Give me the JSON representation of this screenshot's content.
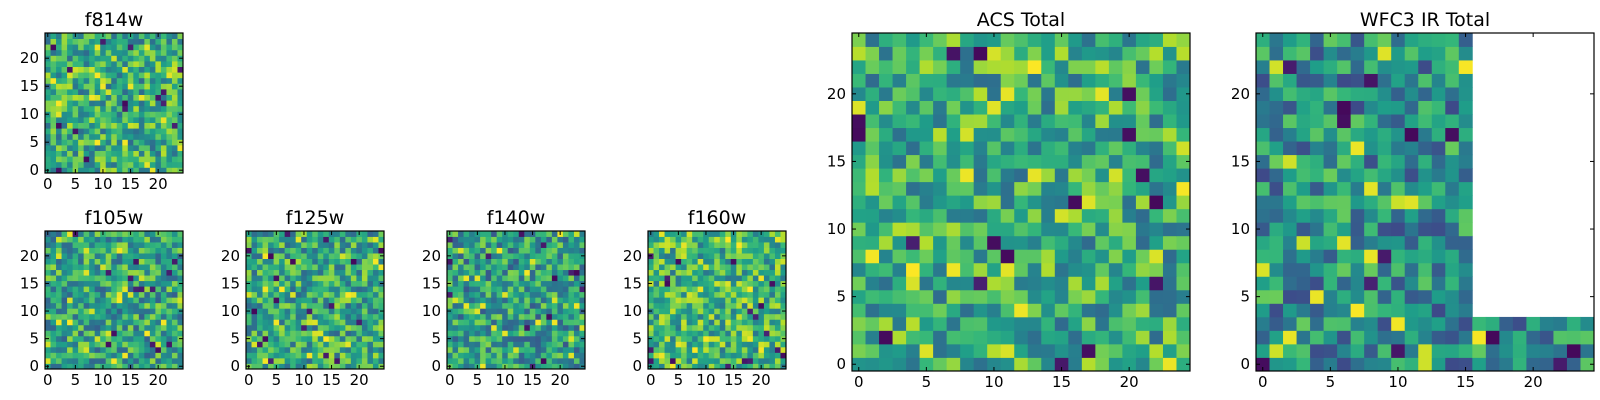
{
  "chart_data": [
    {
      "type": "heatmap",
      "title": "f814w",
      "colormap": "viridis",
      "xlim": [
        0,
        25
      ],
      "ylim": [
        0,
        25
      ],
      "xticks": [
        0,
        5,
        10,
        15,
        20
      ],
      "yticks": [
        0,
        5,
        10,
        15,
        20
      ],
      "seed": 814,
      "masked": false
    },
    {
      "type": "heatmap",
      "title": "f105w",
      "colormap": "viridis",
      "xlim": [
        0,
        25
      ],
      "ylim": [
        0,
        25
      ],
      "xticks": [
        0,
        5,
        10,
        15,
        20
      ],
      "yticks": [
        0,
        5,
        10,
        15,
        20
      ],
      "seed": 105,
      "masked": false
    },
    {
      "type": "heatmap",
      "title": "f125w",
      "colormap": "viridis",
      "xlim": [
        0,
        25
      ],
      "ylim": [
        0,
        25
      ],
      "xticks": [
        0,
        5,
        10,
        15,
        20
      ],
      "yticks": [
        0,
        5,
        10,
        15,
        20
      ],
      "seed": 125,
      "masked": false
    },
    {
      "type": "heatmap",
      "title": "f140w",
      "colormap": "viridis",
      "xlim": [
        0,
        25
      ],
      "ylim": [
        0,
        25
      ],
      "xticks": [
        0,
        5,
        10,
        15,
        20
      ],
      "yticks": [
        0,
        5,
        10,
        15,
        20
      ],
      "seed": 140,
      "masked": false
    },
    {
      "type": "heatmap",
      "title": "f160w",
      "colormap": "viridis",
      "xlim": [
        0,
        25
      ],
      "ylim": [
        0,
        25
      ],
      "xticks": [
        0,
        5,
        10,
        15,
        20
      ],
      "yticks": [
        0,
        5,
        10,
        15,
        20
      ],
      "seed": 160,
      "masked": false
    },
    {
      "type": "heatmap",
      "title": "ACS Total",
      "colormap": "viridis",
      "xlim": [
        0,
        25
      ],
      "ylim": [
        0,
        25
      ],
      "xticks": [
        0,
        5,
        10,
        15,
        20
      ],
      "yticks": [
        0,
        5,
        10,
        15,
        20
      ],
      "seed": 1,
      "masked": false
    },
    {
      "type": "heatmap",
      "title": "WFC3 IR Total",
      "colormap": "viridis",
      "xlim": [
        0,
        25
      ],
      "ylim": [
        0,
        25
      ],
      "xticks": [
        0,
        5,
        10,
        15,
        20
      ],
      "yticks": [
        0,
        5,
        10,
        15,
        20
      ],
      "seed": 2,
      "masked": true,
      "valid_cols_per_row": [
        25,
        25,
        25,
        25,
        16,
        16,
        16,
        16,
        16,
        16,
        16,
        16,
        16,
        16,
        16,
        16,
        16,
        16,
        16,
        16,
        16,
        16,
        16,
        16,
        16
      ]
    }
  ]
}
